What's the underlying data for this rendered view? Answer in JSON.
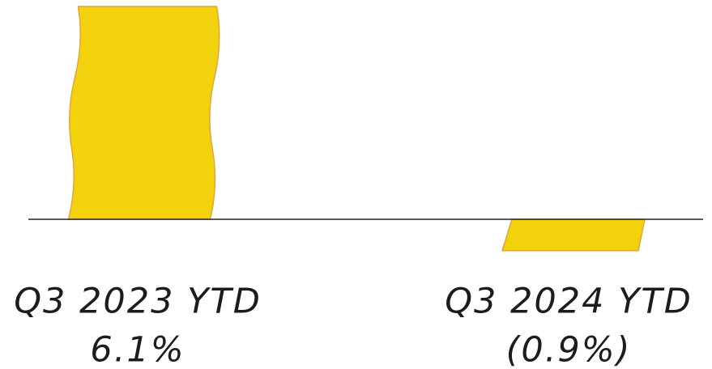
{
  "chart_data": {
    "type": "bar",
    "categories": [
      "Q3 2023 YTD",
      "Q3 2024 YTD"
    ],
    "values": [
      6.1,
      -0.9
    ],
    "value_labels": [
      "6.1%",
      "(0.9%)"
    ],
    "color": "#f2d20c"
  }
}
